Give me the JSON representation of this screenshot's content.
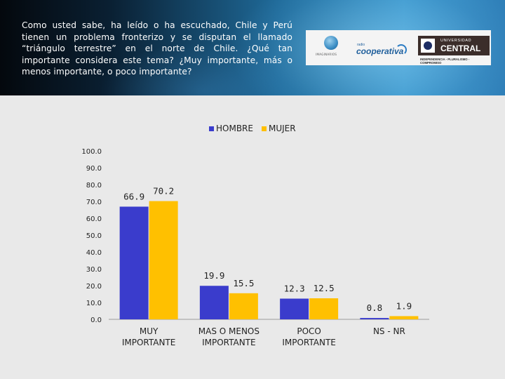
{
  "header": {
    "question": "Como usted sabe, ha leído o ha escuchado, Chile y Perú tienen un problema fronterizo y se disputan el llamado “triángulo terrestre” en el norte de Chile. ¿Qué tan importante considera este tema? ¿Muy importante, más o menos importante, o poco importante?",
    "logo_inmaginarios": "IMAGINARIOS",
    "logo_radio": "radio",
    "logo_cooperativa": "cooperativa",
    "logo_uc_line1": "UNIVERSIDAD",
    "logo_uc_line2": "CENTRAL",
    "logo_uc_tagline": "INDEPENDENCIA - PLURALISMO - COMPROMISO"
  },
  "colors": {
    "hombre": "#3a3ccc",
    "mujer": "#ffc000"
  },
  "chart_data": {
    "type": "bar",
    "categories": [
      [
        "MUY",
        "IMPORTANTE"
      ],
      [
        "MAS O MENOS",
        "IMPORTANTE"
      ],
      [
        "POCO",
        "IMPORTANTE"
      ],
      [
        "NS - NR"
      ]
    ],
    "series": [
      {
        "name": "HOMBRE",
        "values": [
          66.9,
          19.9,
          12.3,
          0.8
        ],
        "labels": [
          "66.9",
          "19.9",
          "12.3",
          "0.8"
        ]
      },
      {
        "name": "MUJER",
        "values": [
          70.2,
          15.5,
          12.5,
          1.9
        ],
        "labels": [
          "70.2",
          "15.5",
          "12.5",
          "1.9"
        ]
      }
    ],
    "ylim": [
      0,
      100
    ],
    "yticks": [
      "0.0",
      "10.0",
      "20.0",
      "30.0",
      "40.0",
      "50.0",
      "60.0",
      "70.0",
      "80.0",
      "90.0",
      "100.0"
    ],
    "legend_position": "top",
    "grid": false
  }
}
